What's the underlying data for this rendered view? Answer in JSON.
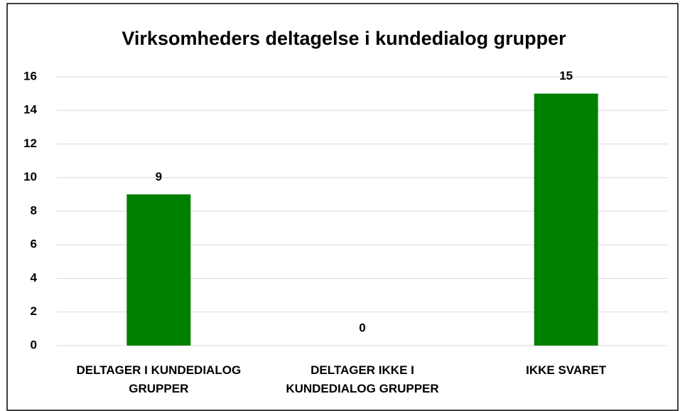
{
  "chart_data": {
    "type": "bar",
    "title": "Virksomheders deltagelse i kundedialog grupper",
    "categories": [
      "DELTAGER I KUNDEDIALOG GRUPPER",
      "DELTAGER IKKE I KUNDEDIALOG GRUPPER",
      "IKKE SVARET"
    ],
    "values": [
      9,
      0,
      15
    ],
    "color": "#008000",
    "ylim": [
      0,
      16
    ],
    "yticks": [
      0,
      2,
      4,
      6,
      8,
      10,
      12,
      14,
      16
    ],
    "grid": true
  }
}
